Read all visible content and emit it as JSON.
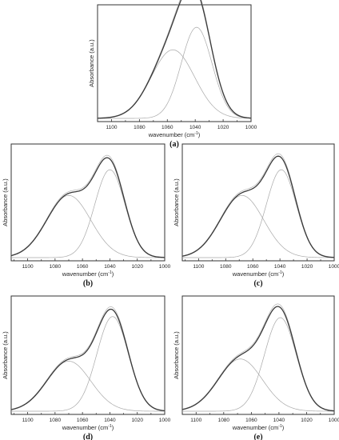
{
  "figure": {
    "ylabel": "Absorbance (a.u.)",
    "xlabel_main": "wavenumber (cm",
    "xlabel_sup": "-1",
    "xlabel_close": ")"
  },
  "chart_data": [
    {
      "type": "line",
      "panel": "(a)",
      "xlim": [
        1110,
        1000
      ],
      "x_reversed": true,
      "xticks": [
        1100,
        1080,
        1060,
        1040,
        1020,
        1000
      ],
      "xlabel": "wavenumber (cm-1)",
      "ylabel": "Absorbance (a.u.)",
      "components": [
        {
          "center": 1056,
          "amplitude": 0.64,
          "sigma": 15.5
        },
        {
          "center": 1039,
          "amplitude": 0.85,
          "sigma": 11.0
        }
      ],
      "peak_position": 1043,
      "peak_value": 0.95
    },
    {
      "type": "line",
      "panel": "(b)",
      "xlim": [
        1112,
        1000
      ],
      "x_reversed": true,
      "xticks": [
        1100,
        1080,
        1060,
        1040,
        1020,
        1000
      ],
      "xlabel": "wavenumber (cm-1)",
      "ylabel": "Absorbance (a.u.)",
      "components": [
        {
          "center": 1070,
          "amplitude": 0.58,
          "sigma": 16.0
        },
        {
          "center": 1040,
          "amplitude": 0.82,
          "sigma": 11.0
        }
      ],
      "peak_position": 1043,
      "peak_value": 0.93
    },
    {
      "type": "line",
      "panel": "(c)",
      "xlim": [
        1112,
        1000
      ],
      "x_reversed": true,
      "xticks": [
        1100,
        1080,
        1060,
        1040,
        1020,
        1000
      ],
      "xlabel": "wavenumber (cm-1)",
      "ylabel": "Absorbance (a.u.)",
      "components": [
        {
          "center": 1068,
          "amplitude": 0.58,
          "sigma": 16.0
        },
        {
          "center": 1039,
          "amplitude": 0.82,
          "sigma": 11.0
        }
      ],
      "peak_position": 1041,
      "peak_value": 0.93
    },
    {
      "type": "line",
      "panel": "(d)",
      "xlim": [
        1112,
        1000
      ],
      "x_reversed": true,
      "xticks": [
        1100,
        1080,
        1060,
        1040,
        1020,
        1000
      ],
      "xlabel": "wavenumber (cm-1)",
      "ylabel": "Absorbance (a.u.)",
      "components": [
        {
          "center": 1070,
          "amplitude": 0.46,
          "sigma": 16.0
        },
        {
          "center": 1038,
          "amplitude": 0.87,
          "sigma": 11.5
        }
      ],
      "peak_position": 1040,
      "peak_value": 0.93
    },
    {
      "type": "line",
      "panel": "(e)",
      "xlim": [
        1110,
        1000
      ],
      "x_reversed": true,
      "xticks": [
        1100,
        1080,
        1060,
        1040,
        1020,
        1000
      ],
      "xlabel": "wavenumber (cm-1)",
      "ylabel": "Absorbance (a.u.)",
      "components": [
        {
          "center": 1068,
          "amplitude": 0.48,
          "sigma": 16.0
        },
        {
          "center": 1039,
          "amplitude": 0.86,
          "sigma": 11.5
        }
      ],
      "peak_position": 1041,
      "peak_value": 0.93
    }
  ]
}
